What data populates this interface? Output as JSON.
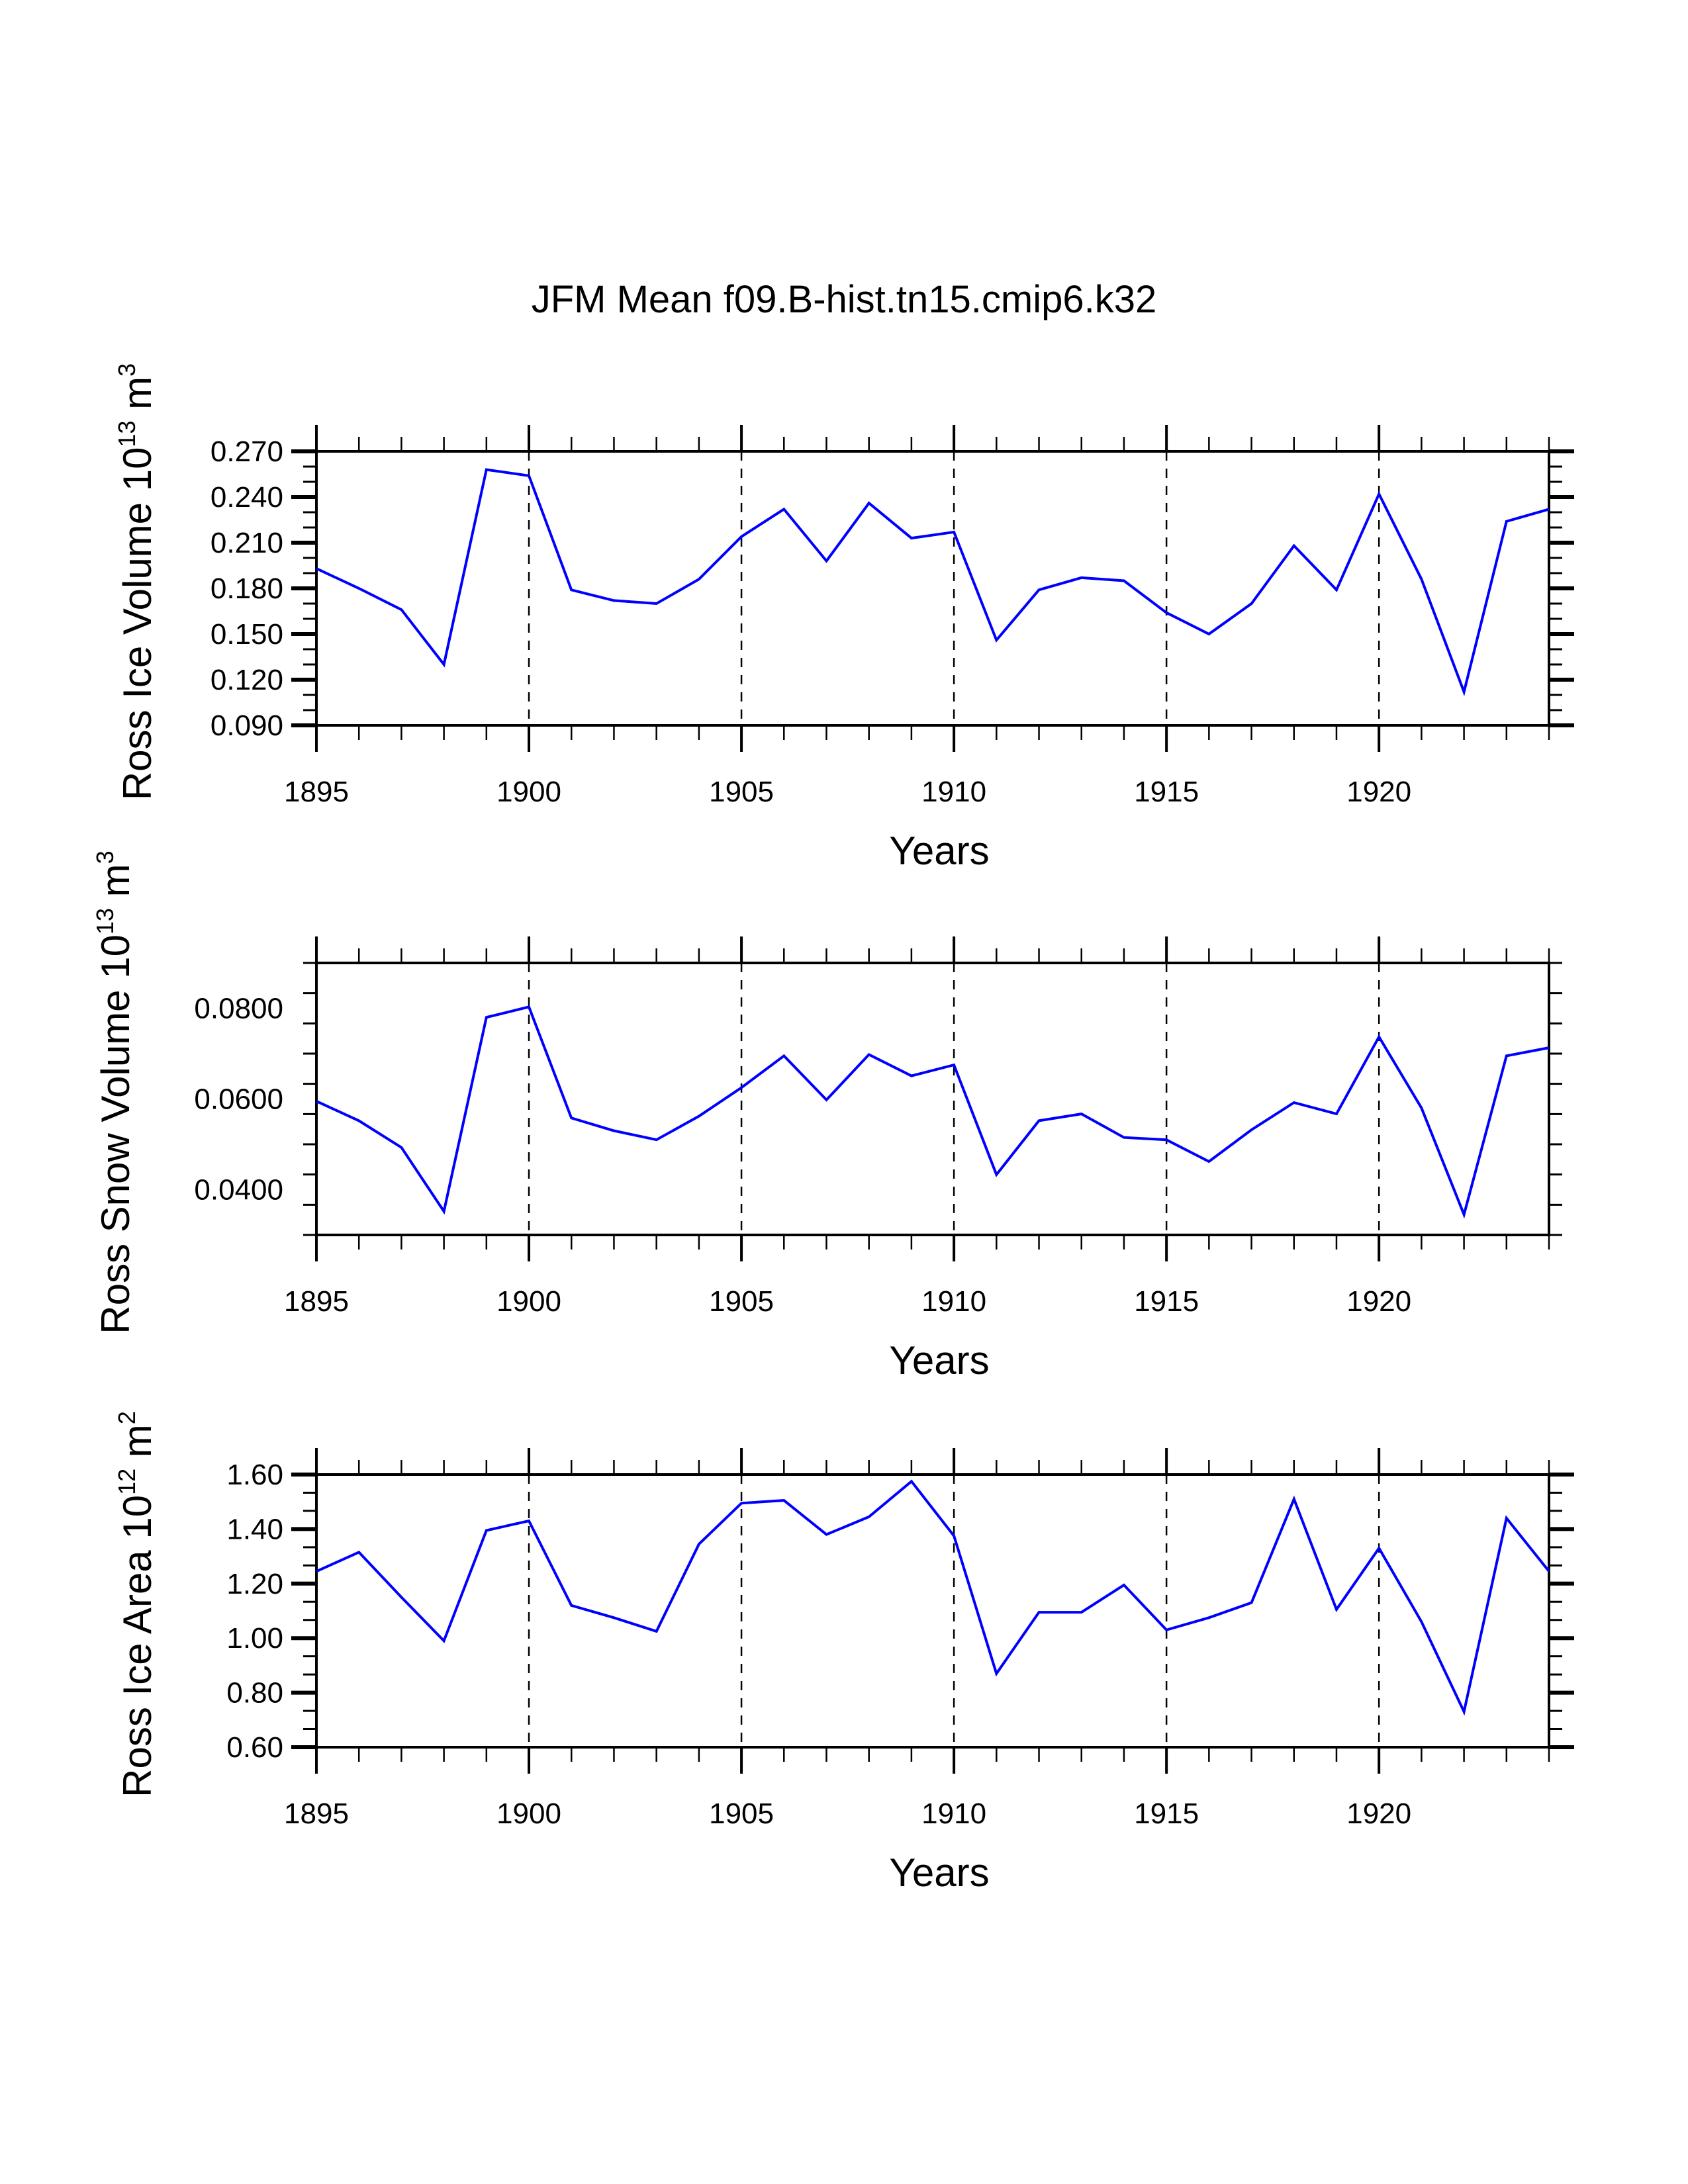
{
  "chart_data": [
    {
      "type": "line",
      "title": "JFM Mean f09.B-hist.tn15.cmip6.k32",
      "xlabel": "Years",
      "ylabel": "Ross Ice Volume 10^13 m^3",
      "ylabel_parts": {
        "base": "Ross Ice Volume 10",
        "exp1": "13",
        "mid": " m",
        "exp2": "3"
      },
      "xlim": [
        1895,
        1924
      ],
      "ylim": [
        0.09,
        0.27
      ],
      "xticks": [
        "1895",
        "1900",
        "1905",
        "1910",
        "1915",
        "1920"
      ],
      "xtick_values": [
        1895,
        1900,
        1905,
        1910,
        1915,
        1920
      ],
      "yticks": [
        "0.090",
        "0.120",
        "0.150",
        "0.180",
        "0.210",
        "0.240",
        "0.270"
      ],
      "ytick_values": [
        0.09,
        0.12,
        0.15,
        0.18,
        0.21,
        0.24,
        0.27
      ],
      "grid": "dashed vertical lines at 1900, 1905, 1910, 1915, 1920",
      "series": [
        {
          "name": "Ross Ice Volume",
          "color": "#0000ff",
          "x": [
            1895,
            1896,
            1897,
            1898,
            1899,
            1900,
            1901,
            1902,
            1903,
            1904,
            1905,
            1906,
            1907,
            1908,
            1909,
            1910,
            1911,
            1912,
            1913,
            1914,
            1915,
            1916,
            1917,
            1918,
            1919,
            1920,
            1921,
            1922,
            1923,
            1924
          ],
          "values": [
            0.193,
            0.18,
            0.166,
            0.13,
            0.258,
            0.254,
            0.179,
            0.172,
            0.17,
            0.186,
            0.214,
            0.232,
            0.198,
            0.236,
            0.213,
            0.217,
            0.146,
            0.179,
            0.187,
            0.185,
            0.164,
            0.15,
            0.17,
            0.208,
            0.179,
            0.242,
            0.186,
            0.112,
            0.224,
            0.232
          ]
        }
      ]
    },
    {
      "type": "line",
      "title": "",
      "xlabel": "Years",
      "ylabel": "Ross Snow Volume 10^13 m^3",
      "ylabel_parts": {
        "base": "Ross Snow Volume 10",
        "exp1": "13",
        "mid": " m",
        "exp2": "3"
      },
      "xlim": [
        1895,
        1924
      ],
      "ylim": [
        0.03,
        0.09
      ],
      "xticks": [
        "1895",
        "1900",
        "1905",
        "1910",
        "1915",
        "1920"
      ],
      "xtick_values": [
        1895,
        1900,
        1905,
        1910,
        1915,
        1920
      ],
      "yticks": [
        "0.0400",
        "0.0600",
        "0.0800"
      ],
      "ytick_values": [
        0.04,
        0.06,
        0.08
      ],
      "grid": "dashed vertical lines at 1900, 1905, 1910, 1915, 1920",
      "series": [
        {
          "name": "Ross Snow Volume",
          "color": "#0000ff",
          "x": [
            1895,
            1896,
            1897,
            1898,
            1899,
            1900,
            1901,
            1902,
            1903,
            1904,
            1905,
            1906,
            1907,
            1908,
            1909,
            1910,
            1911,
            1912,
            1913,
            1914,
            1915,
            1916,
            1917,
            1918,
            1919,
            1920,
            1921,
            1922,
            1923,
            1924
          ],
          "values": [
            0.0595,
            0.0552,
            0.0493,
            0.0352,
            0.078,
            0.0803,
            0.0558,
            0.053,
            0.051,
            0.0562,
            0.0625,
            0.0695,
            0.0598,
            0.0698,
            0.0651,
            0.0675,
            0.0433,
            0.0552,
            0.0567,
            0.0515,
            0.051,
            0.0462,
            0.0532,
            0.0592,
            0.0567,
            0.0737,
            0.058,
            0.0345,
            0.0695,
            0.0713
          ]
        }
      ]
    },
    {
      "type": "line",
      "title": "",
      "xlabel": "Years",
      "ylabel": "Ross Ice Area 10^12 m^2",
      "ylabel_parts": {
        "base": "Ross Ice Area 10",
        "exp1": "12",
        "mid": " m",
        "exp2": "2"
      },
      "xlim": [
        1895,
        1924
      ],
      "ylim": [
        0.6,
        1.6
      ],
      "xticks": [
        "1895",
        "1900",
        "1905",
        "1910",
        "1915",
        "1920"
      ],
      "xtick_values": [
        1895,
        1900,
        1905,
        1910,
        1915,
        1920
      ],
      "yticks": [
        "0.60",
        "0.80",
        "1.00",
        "1.20",
        "1.40",
        "1.60"
      ],
      "ytick_values": [
        0.6,
        0.8,
        1.0,
        1.2,
        1.4,
        1.6
      ],
      "grid": "dashed vertical lines at 1900, 1905, 1910, 1915, 1920",
      "series": [
        {
          "name": "Ross Ice Area",
          "color": "#0000ff",
          "x": [
            1895,
            1896,
            1897,
            1898,
            1899,
            1900,
            1901,
            1902,
            1903,
            1904,
            1905,
            1906,
            1907,
            1908,
            1909,
            1910,
            1911,
            1912,
            1913,
            1914,
            1915,
            1916,
            1917,
            1918,
            1919,
            1920,
            1921,
            1922,
            1923,
            1924
          ],
          "values": [
            1.245,
            1.315,
            1.15,
            0.99,
            1.395,
            1.43,
            1.12,
            1.075,
            1.025,
            1.345,
            1.495,
            1.505,
            1.38,
            1.445,
            1.575,
            1.375,
            0.87,
            1.095,
            1.095,
            1.195,
            1.03,
            1.075,
            1.13,
            1.51,
            1.105,
            1.33,
            1.06,
            0.73,
            1.44,
            1.245
          ]
        }
      ]
    }
  ]
}
